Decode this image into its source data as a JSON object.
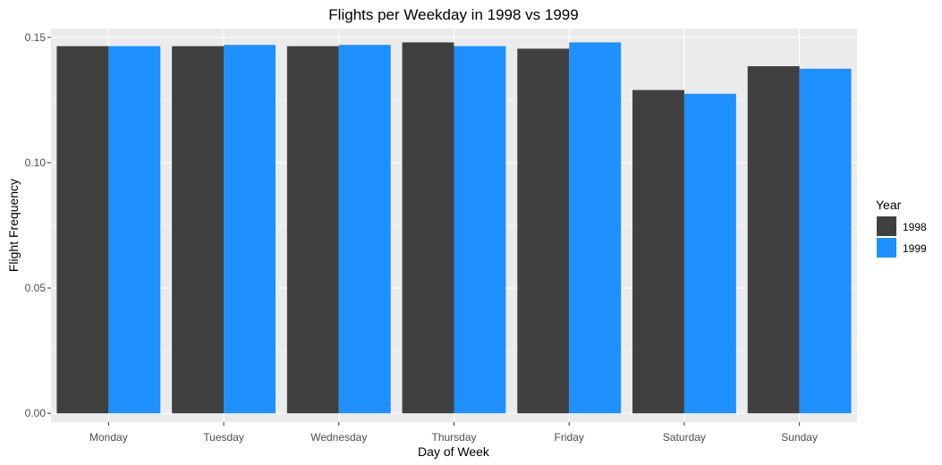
{
  "chart_data": {
    "type": "bar",
    "title": "Flights per Weekday in 1998 vs 1999",
    "xlabel": "Day of Week",
    "ylabel": "Flight Frequency",
    "categories": [
      "Monday",
      "Tuesday",
      "Wednesday",
      "Thursday",
      "Friday",
      "Saturday",
      "Sunday"
    ],
    "series": [
      {
        "name": "1998",
        "color": "#404040",
        "values": [
          0.1465,
          0.1465,
          0.1465,
          0.148,
          0.1455,
          0.129,
          0.1385
        ]
      },
      {
        "name": "1999",
        "color": "#1E90FF",
        "values": [
          0.1465,
          0.147,
          0.147,
          0.1465,
          0.148,
          0.1275,
          0.1375
        ]
      }
    ],
    "ylim": [
      -0.0035,
      0.1535
    ],
    "yticks": [
      0.0,
      0.05,
      0.1,
      0.15
    ],
    "ytick_labels": [
      "0.00",
      "0.05",
      "0.10",
      "0.15"
    ],
    "grid": true,
    "panel_background": "#EBEBEB",
    "legend": {
      "title": "Year",
      "position": "right"
    }
  }
}
